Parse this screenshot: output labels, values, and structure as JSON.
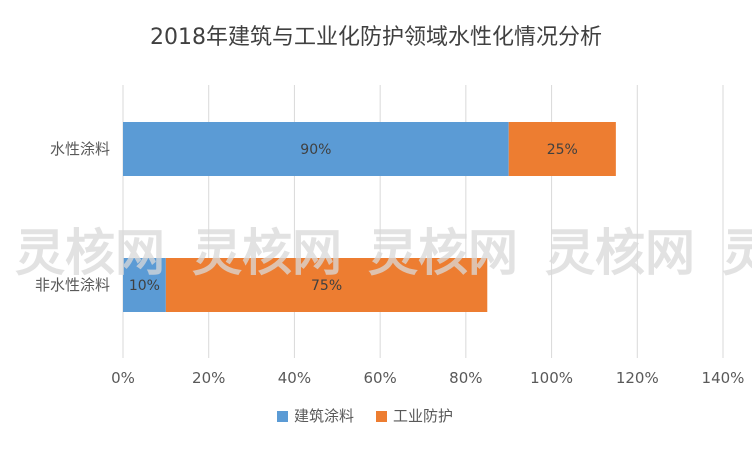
{
  "chart_data": {
    "type": "bar",
    "orientation": "horizontal",
    "stacked": true,
    "title": "2018年建筑与工业化防护领域水性化情况分析",
    "categories": [
      "水性涂料",
      "非水性涂料"
    ],
    "series": [
      {
        "name": "建筑涂料",
        "color": "#5b9bd5",
        "values": [
          90,
          10
        ],
        "labels": [
          "90%",
          "10%"
        ]
      },
      {
        "name": "工业防护",
        "color": "#ed7d31",
        "values": [
          25,
          75
        ],
        "labels": [
          "25%",
          "75%"
        ]
      }
    ],
    "xlim": [
      0,
      140
    ],
    "xticks": [
      "0%",
      "20%",
      "40%",
      "60%",
      "80%",
      "100%",
      "120%",
      "140%"
    ],
    "grid": "vertical",
    "legend": "bottom",
    "watermark": "灵核网"
  }
}
